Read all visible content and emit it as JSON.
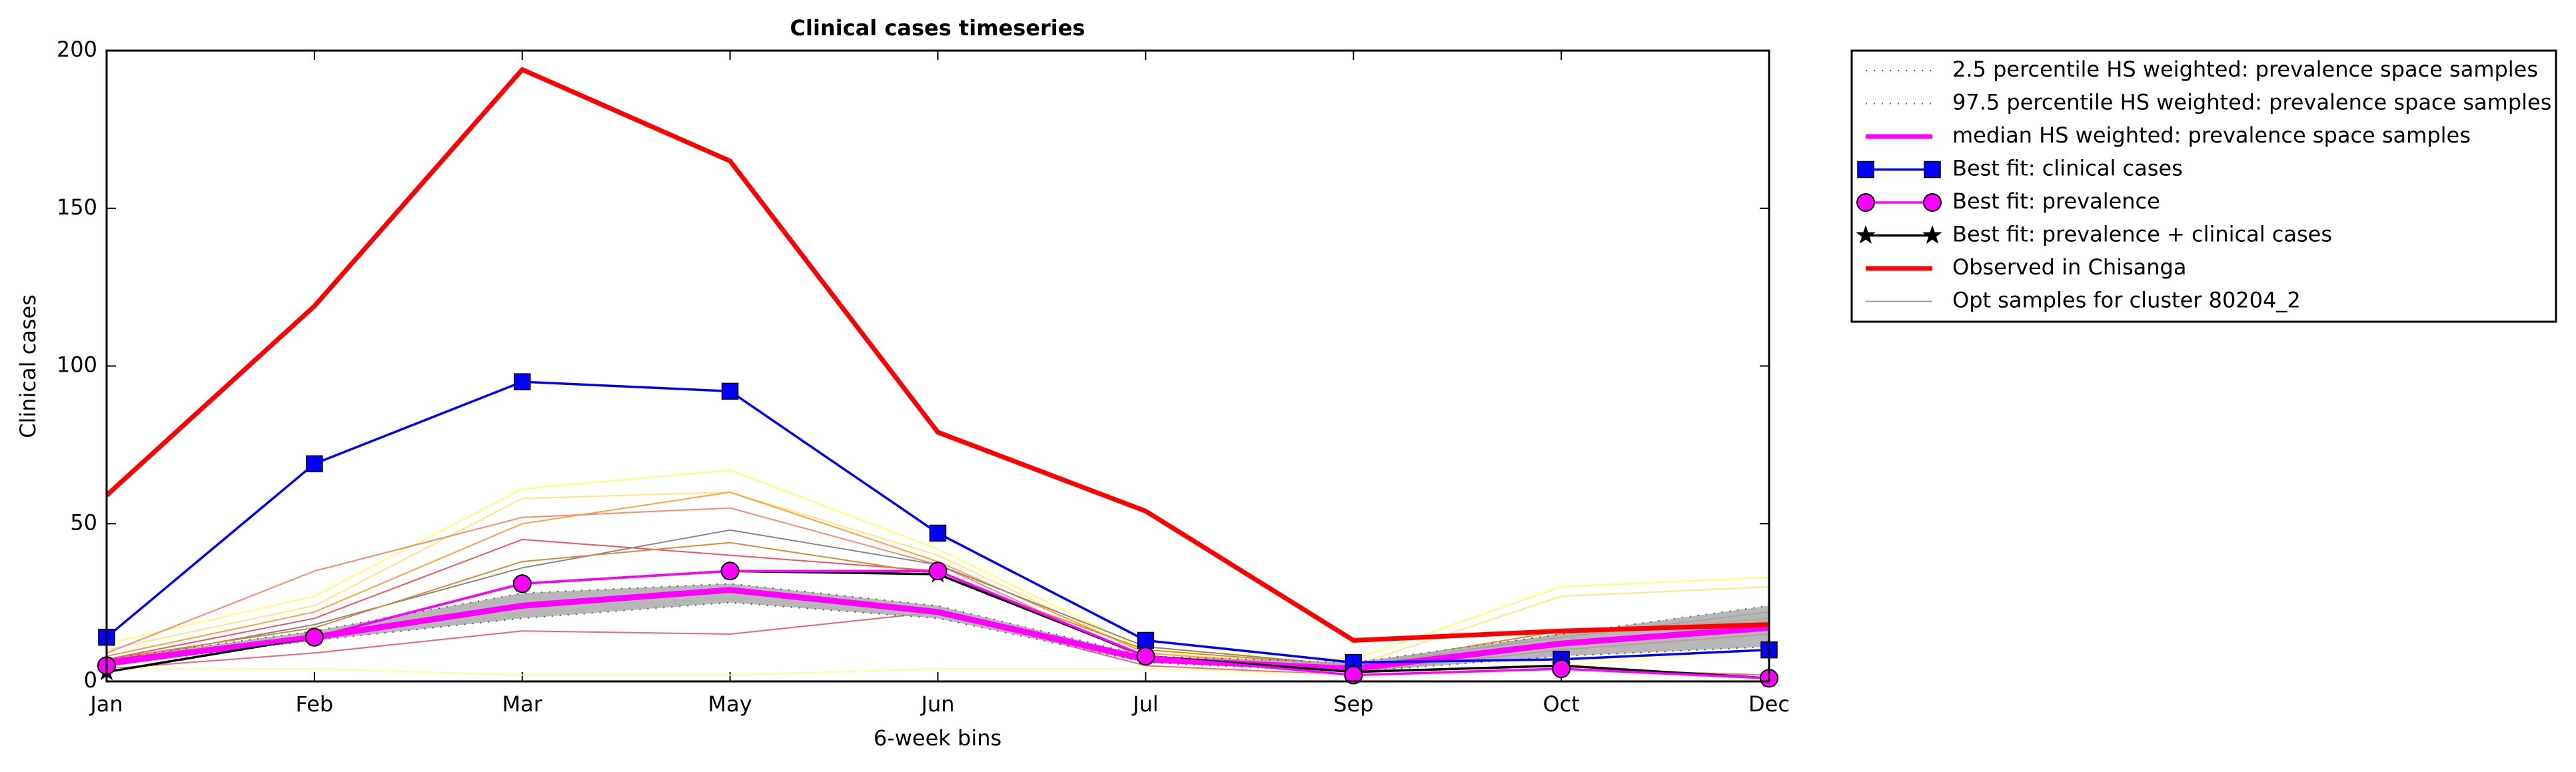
{
  "chart_data": {
    "type": "line",
    "title": "Clinical cases timeseries",
    "xlabel": "6-week bins",
    "ylabel": "Clinical cases",
    "categories": [
      "Jan",
      "Feb",
      "Mar",
      "May",
      "Jun",
      "Jul",
      "Sep",
      "Oct",
      "Dec"
    ],
    "ylim": [
      0,
      200
    ],
    "yticks": [
      0,
      50,
      100,
      150,
      200
    ],
    "legend": "outside upper right",
    "band_fill": "#aaaaaa",
    "series": [
      {
        "name": "2.5 percentile HS weighted: prevalence space samples",
        "color": "#555555",
        "linestyle": "dotted",
        "linewidth": 2,
        "values": [
          5,
          13,
          20,
          25,
          20,
          6,
          3,
          8,
          11
        ]
      },
      {
        "name": "97.5 percentile HS weighted: prevalence space samples",
        "color": "#555555",
        "linestyle": "dotted",
        "linewidth": 2,
        "values": [
          7,
          16,
          28,
          31,
          24,
          8,
          6,
          15,
          24
        ]
      },
      {
        "name": "median HS weighted: prevalence space samples",
        "color": "#ff00ff",
        "linestyle": "solid",
        "linewidth": 9,
        "values": [
          6,
          14,
          24,
          29,
          22,
          7,
          4,
          12,
          17
        ]
      },
      {
        "name": "Best fit: clinical cases",
        "color": "#0000ff",
        "linestyle": "solid",
        "linewidth": 3.5,
        "marker": "square",
        "values": [
          14,
          69,
          95,
          92,
          47,
          13,
          6,
          7,
          10
        ]
      },
      {
        "name": "Best fit: prevalence",
        "color": "#ff00ff",
        "linestyle": "solid",
        "linewidth": 3.5,
        "marker": "circle",
        "values": [
          5,
          14,
          31,
          35,
          35,
          8,
          2,
          4,
          1
        ]
      },
      {
        "name": "Best fit: prevalence + clinical cases",
        "color": "#000000",
        "linestyle": "solid",
        "linewidth": 3.5,
        "marker": "star",
        "values": [
          3,
          14,
          31,
          35,
          34,
          8,
          3,
          5,
          1
        ]
      },
      {
        "name": "Observed in Chisanga",
        "color": "#ff0000",
        "linestyle": "solid",
        "linewidth": 7,
        "values": [
          59,
          119,
          194,
          165,
          79,
          54,
          13,
          16,
          18
        ]
      },
      {
        "name": "Opt samples for cluster 80204_2",
        "color": "#999999",
        "linestyle": "solid",
        "linewidth": 2,
        "lines": [
          {
            "color": "#ffff66",
            "values": [
              12,
              27,
              61,
              67,
              42,
              10,
              7,
              30,
              33
            ]
          },
          {
            "color": "#ffe680",
            "values": [
              10,
              24,
              58,
              60,
              40,
              9,
              5,
              27,
              30
            ]
          },
          {
            "color": "#ffa040",
            "values": [
              8,
              22,
              50,
              60,
              38,
              9,
              4,
              15,
              20
            ]
          },
          {
            "color": "#ee5566",
            "values": [
              7,
              20,
              45,
              40,
              35,
              8,
              3,
              10,
              15
            ]
          },
          {
            "color": "#ff8870",
            "values": [
              9,
              35,
              52,
              55,
              37,
              7,
              4,
              12,
              16
            ]
          },
          {
            "color": "#888888",
            "values": [
              6,
              18,
              36,
              48,
              37,
              11,
              5,
              14,
              22
            ]
          },
          {
            "color": "#ee6677",
            "values": [
              4,
              9,
              16,
              15,
              22,
              5,
              2,
              4,
              2
            ]
          },
          {
            "color": "#ffff99",
            "values": [
              4,
              4,
              2,
              2,
              4,
              4,
              2,
              5,
              10
            ]
          },
          {
            "color": "#dd8833",
            "values": [
              7,
              17,
              38,
              44,
              34,
              10,
              5,
              16,
              19
            ]
          }
        ]
      }
    ]
  }
}
